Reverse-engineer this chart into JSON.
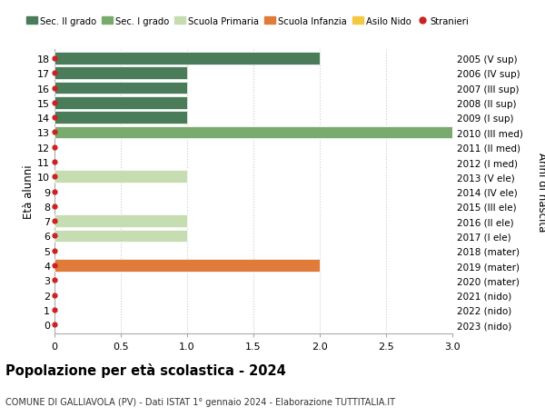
{
  "ages": [
    0,
    1,
    2,
    3,
    4,
    5,
    6,
    7,
    8,
    9,
    10,
    11,
    12,
    13,
    14,
    15,
    16,
    17,
    18
  ],
  "right_labels": [
    "2023 (nido)",
    "2022 (nido)",
    "2021 (nido)",
    "2020 (mater)",
    "2019 (mater)",
    "2018 (mater)",
    "2017 (I ele)",
    "2016 (II ele)",
    "2015 (III ele)",
    "2014 (IV ele)",
    "2013 (V ele)",
    "2012 (I med)",
    "2011 (II med)",
    "2010 (III med)",
    "2009 (I sup)",
    "2008 (II sup)",
    "2007 (III sup)",
    "2006 (IV sup)",
    "2005 (V sup)"
  ],
  "bars": [
    {
      "label": "Sec. II grado",
      "color": "#4a7c59",
      "data": [
        0,
        0,
        0,
        0,
        0,
        0,
        0,
        0,
        0,
        0,
        0,
        0,
        0,
        0,
        1,
        1,
        1,
        1,
        2
      ]
    },
    {
      "label": "Sec. I grado",
      "color": "#7aab6e",
      "data": [
        0,
        0,
        0,
        0,
        0,
        0,
        0,
        0,
        0,
        0,
        0,
        0,
        0,
        3,
        0,
        0,
        0,
        0,
        0
      ]
    },
    {
      "label": "Scuola Primaria",
      "color": "#c5ddb0",
      "data": [
        0,
        0,
        0,
        0,
        0,
        0,
        1,
        1,
        0,
        0,
        1,
        0,
        0,
        0,
        0,
        0,
        0,
        0,
        0
      ]
    },
    {
      "label": "Scuola Infanzia",
      "color": "#e07b39",
      "data": [
        0,
        0,
        0,
        0,
        2,
        0,
        0,
        0,
        0,
        0,
        0,
        0,
        0,
        0,
        0,
        0,
        0,
        0,
        0
      ]
    },
    {
      "label": "Asilo Nido",
      "color": "#f5c842",
      "data": [
        0,
        0,
        0,
        0,
        0,
        0,
        0,
        0,
        0,
        0,
        0,
        0,
        0,
        0,
        0,
        0,
        0,
        0,
        0
      ]
    }
  ],
  "stranieri_color": "#cc2222",
  "stranieri_ages": [
    0,
    1,
    2,
    3,
    4,
    5,
    6,
    7,
    8,
    9,
    10,
    11,
    12,
    13,
    14,
    15,
    16,
    17,
    18
  ],
  "xlim": [
    0,
    3.0
  ],
  "xticks": [
    0,
    0.5,
    1.0,
    1.5,
    2.0,
    2.5,
    3.0
  ],
  "ylabel_left": "Età alunni",
  "ylabel_right": "Anni di nascita",
  "title": "Popolazione per età scolastica - 2024",
  "subtitle": "COMUNE DI GALLIAVOLA (PV) - Dati ISTAT 1° gennaio 2024 - Elaborazione TUTTITALIA.IT",
  "bg_color": "#ffffff",
  "grid_color": "#cccccc",
  "bar_height": 0.85,
  "legend_labels": [
    "Sec. II grado",
    "Sec. I grado",
    "Scuola Primaria",
    "Scuola Infanzia",
    "Asilo Nido",
    "Stranieri"
  ],
  "legend_colors": [
    "#4a7c59",
    "#7aab6e",
    "#c5ddb0",
    "#e07b39",
    "#f5c842",
    "#cc2222"
  ]
}
